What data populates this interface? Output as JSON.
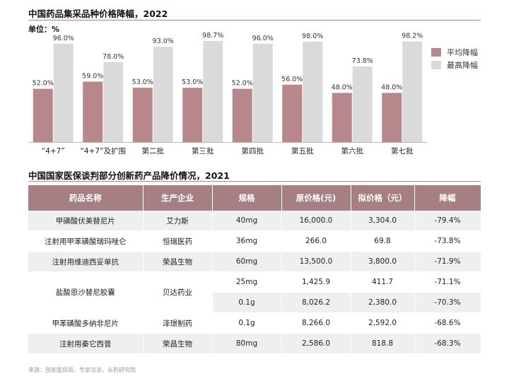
{
  "chart_title": "中国药品集采品种价格降幅，2022",
  "unit_label": "单位：%",
  "legend": {
    "avg_label": "平均降幅",
    "max_label": "最高降幅",
    "avg_color": "#b7878b",
    "max_color": "#dadada"
  },
  "chart_data": {
    "type": "bar",
    "categories": [
      "“4+7”",
      "“4+7”及扩围",
      "第二批",
      "第三批",
      "第四批",
      "第五批",
      "第六批",
      "第七批"
    ],
    "series": [
      {
        "name": "平均降幅",
        "values": [
          52.0,
          59.0,
          53.0,
          53.0,
          52.0,
          56.0,
          48.0,
          48.0
        ]
      },
      {
        "name": "最高降幅",
        "values": [
          96.0,
          78.0,
          93.0,
          98.7,
          96.0,
          98.0,
          73.8,
          98.2
        ]
      }
    ],
    "ylim": [
      0,
      100
    ],
    "value_labels": {
      "avg": [
        "52.0%",
        "59.0%",
        "53.0%",
        "53.0%",
        "52.0%",
        "56.0%",
        "48.0%",
        "48.0%"
      ],
      "max": [
        "96.0%",
        "78.0%",
        "93.0%",
        "98.7%",
        "96.0%",
        "98.0%",
        "73.8%",
        "98.2%"
      ]
    }
  },
  "table_title": "中国国家医保谈判部分创新药产品降价情况，2021",
  "table": {
    "headers": [
      "药品名称",
      "生产企业",
      "规格",
      "原价格(元)",
      "拟价格（元）",
      "降幅"
    ],
    "rows": [
      {
        "name": "甲磺酸伏美替尼片",
        "company": "艾力斯",
        "spec": "40mg",
        "orig": "16,000.0",
        "new": "3,304.0",
        "drop": "-79.4%"
      },
      {
        "name": "注射用甲苯磺酸瑞玛唑仑",
        "company": "恒瑞医药",
        "spec": "36mg",
        "orig": "266.0",
        "new": "69.8",
        "drop": "-73.8%"
      },
      {
        "name": "注射用维迪西妥单抗",
        "company": "荣昌生物",
        "spec": "60mg",
        "orig": "13,500.0",
        "new": "3,800.0",
        "drop": "-71.9%"
      },
      {
        "name": "盐酸恩沙替尼胶囊",
        "company": "贝达药业",
        "spec": "25mg",
        "orig": "1,425.9",
        "new": "411.7",
        "drop": "-71.1%"
      },
      {
        "name": "",
        "company": "",
        "spec": "0.1g",
        "orig": "8,026.2",
        "new": "2,380.0",
        "drop": "-70.3%"
      },
      {
        "name": "甲苯磺酸多纳非尼片",
        "company": "泽璟制药",
        "spec": "0.1g",
        "orig": "8,266.0",
        "new": "2,592.0",
        "drop": "-68.6%"
      },
      {
        "name": "注射用秦它西普",
        "company": "荣昌生物",
        "spec": "80mg",
        "orig": "2,586.0",
        "new": "818.8",
        "drop": "-68.3%"
      }
    ]
  },
  "source": "来源：国家医保局，专家访谈，头豹研究院"
}
